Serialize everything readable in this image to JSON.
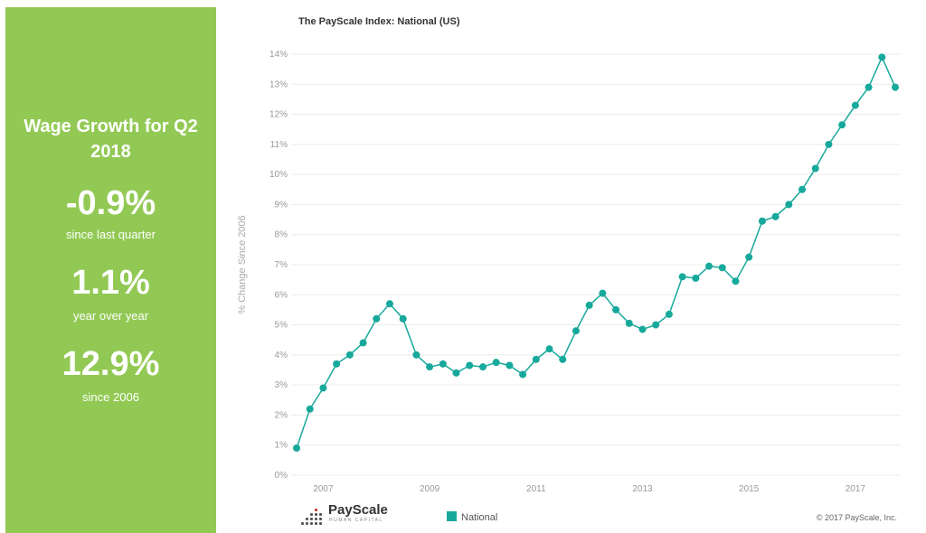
{
  "panel": {
    "title": "Wage Growth for Q2 2018",
    "stats": [
      {
        "value": "-0.9%",
        "caption": "since last quarter"
      },
      {
        "value": "1.1%",
        "caption": "year over year"
      },
      {
        "value": "12.9%",
        "caption": "since 2006"
      }
    ],
    "background": "#92c954"
  },
  "chart_data": {
    "type": "line",
    "title": "The PayScale Index: National (US)",
    "xlabel": "",
    "ylabel": "% Change Since 2006",
    "ylim": [
      0,
      14
    ],
    "yticks": [
      "0%",
      "1%",
      "2%",
      "3%",
      "4%",
      "5%",
      "6%",
      "7%",
      "8%",
      "9%",
      "10%",
      "11%",
      "12%",
      "13%",
      "14%"
    ],
    "xticks": [
      "2007",
      "2009",
      "2011",
      "2013",
      "2015",
      "2017"
    ],
    "grid": "horizontal",
    "legend": "bottom",
    "series": [
      {
        "name": "National",
        "color": "#17a99b",
        "x": [
          "2006 Q3",
          "2006 Q4",
          "2007 Q1",
          "2007 Q2",
          "2007 Q3",
          "2007 Q4",
          "2008 Q1",
          "2008 Q2",
          "2008 Q3",
          "2008 Q4",
          "2009 Q1",
          "2009 Q2",
          "2009 Q3",
          "2009 Q4",
          "2010 Q1",
          "2010 Q2",
          "2010 Q3",
          "2010 Q4",
          "2011 Q1",
          "2011 Q2",
          "2011 Q3",
          "2011 Q4",
          "2012 Q1",
          "2012 Q2",
          "2012 Q3",
          "2012 Q4",
          "2013 Q1",
          "2013 Q2",
          "2013 Q3",
          "2013 Q4",
          "2014 Q1",
          "2014 Q2",
          "2014 Q3",
          "2014 Q4",
          "2015 Q1",
          "2015 Q2",
          "2015 Q3",
          "2015 Q4",
          "2016 Q1",
          "2016 Q2",
          "2016 Q3",
          "2016 Q4",
          "2017 Q1",
          "2017 Q2",
          "2017 Q3",
          "2017 Q4"
        ],
        "values": [
          0.9,
          2.2,
          2.9,
          3.7,
          4.0,
          4.4,
          5.2,
          5.7,
          5.2,
          4.0,
          3.6,
          3.7,
          3.4,
          3.65,
          3.6,
          3.75,
          3.65,
          3.35,
          3.85,
          4.2,
          3.85,
          4.8,
          5.65,
          6.05,
          5.5,
          5.05,
          4.85,
          5.0,
          5.35,
          6.6,
          6.55,
          6.95,
          6.9,
          6.45,
          7.25,
          8.45,
          8.6,
          9.0,
          9.5,
          10.2,
          11.0,
          11.65,
          12.3,
          12.9,
          13.9,
          12.9
        ]
      }
    ]
  },
  "footer": {
    "logo_brand": "PayScale",
    "logo_sub": "HUMAN CAPITAL",
    "legend_label": "National",
    "copyright": "© 2017 PayScale, Inc."
  }
}
